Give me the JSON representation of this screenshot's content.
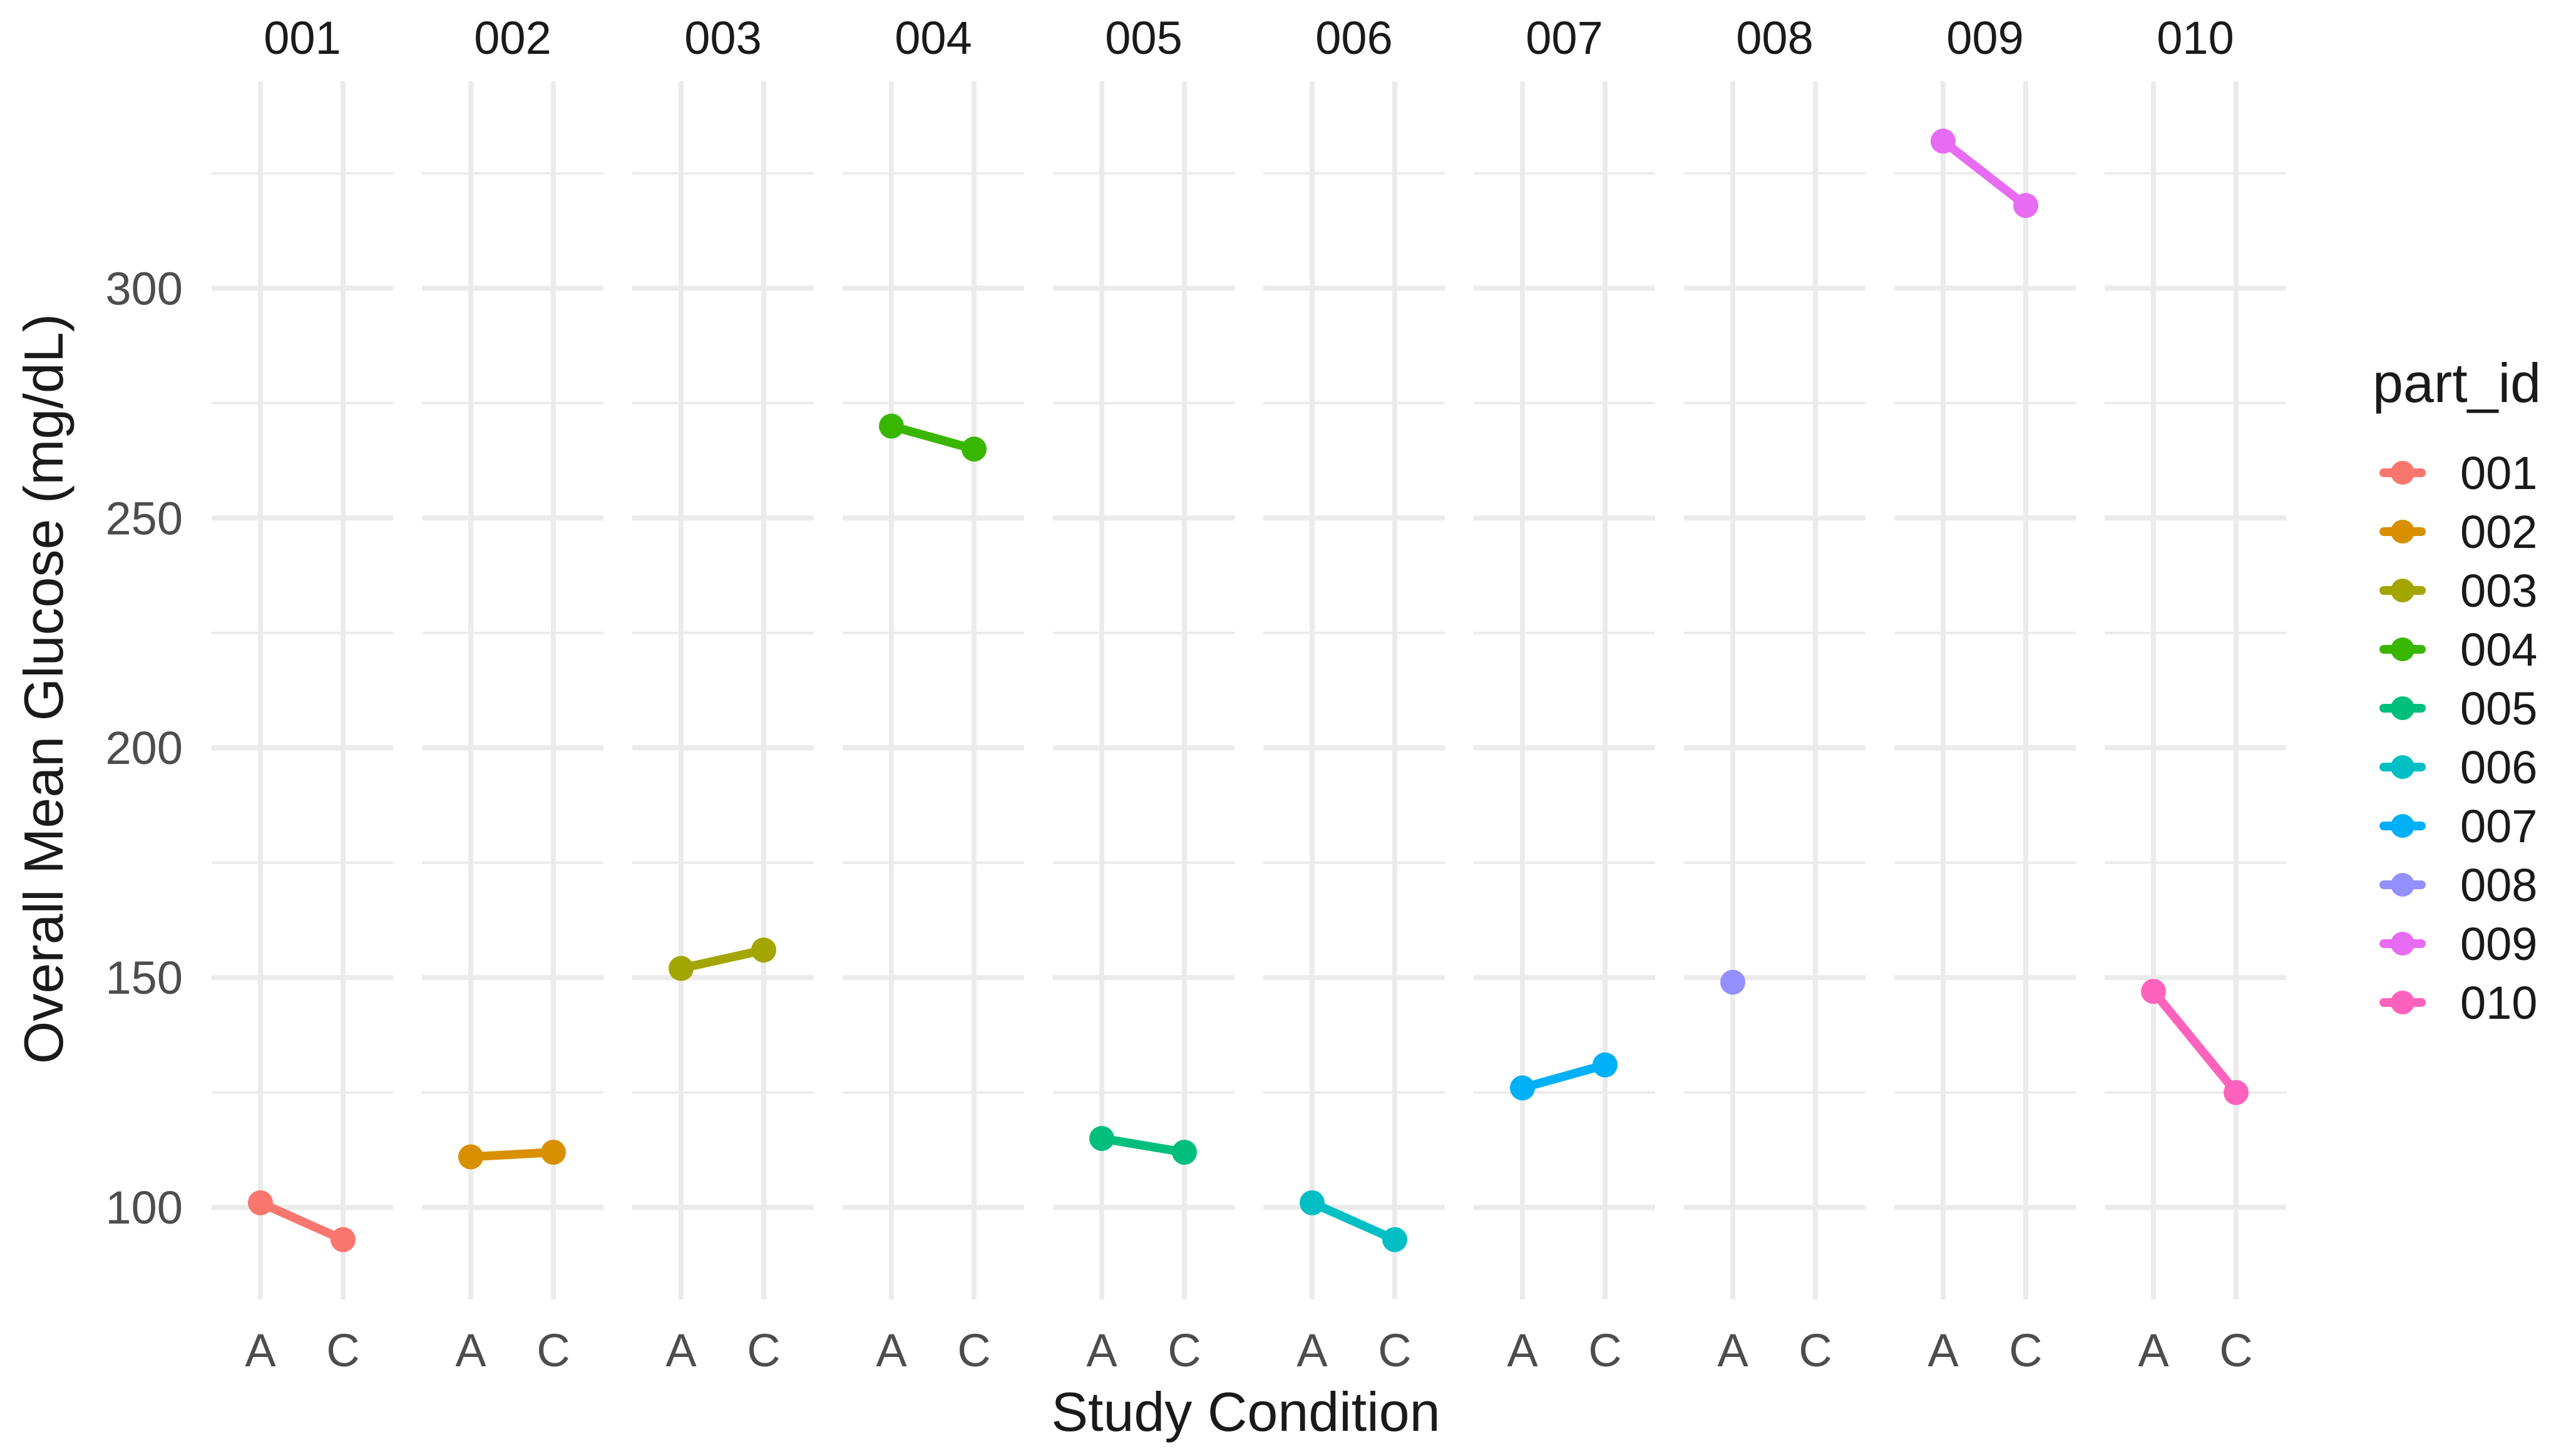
{
  "chart_data": {
    "type": "line",
    "title": "",
    "xlabel": "Study Condition",
    "ylabel": "Overall Mean Glucose (mg/dL)",
    "ylim": [
      80,
      345
    ],
    "y_ticks": [
      100,
      150,
      200,
      250,
      300
    ],
    "grid": true,
    "x_categories": [
      "A",
      "C"
    ],
    "facets": [
      "001",
      "002",
      "003",
      "004",
      "005",
      "006",
      "007",
      "008",
      "009",
      "010"
    ],
    "legend": {
      "title": "part_id",
      "position": "right",
      "entries": [
        "001",
        "002",
        "003",
        "004",
        "005",
        "006",
        "007",
        "008",
        "009",
        "010"
      ]
    },
    "series": [
      {
        "name": "001",
        "color": "#F8766D",
        "values": [
          101,
          93
        ]
      },
      {
        "name": "002",
        "color": "#D89000",
        "values": [
          111,
          112
        ]
      },
      {
        "name": "003",
        "color": "#A3A500",
        "values": [
          152,
          156
        ]
      },
      {
        "name": "004",
        "color": "#39B600",
        "values": [
          270,
          265
        ]
      },
      {
        "name": "005",
        "color": "#00BF7D",
        "values": [
          115,
          112
        ]
      },
      {
        "name": "006",
        "color": "#00BFC4",
        "values": [
          101,
          93
        ]
      },
      {
        "name": "007",
        "color": "#00B0F6",
        "values": [
          126,
          131
        ]
      },
      {
        "name": "008",
        "color": "#9590FF",
        "values": [
          149,
          null
        ]
      },
      {
        "name": "009",
        "color": "#E76BF3",
        "values": [
          332,
          318
        ]
      },
      {
        "name": "010",
        "color": "#FF62BC",
        "values": [
          147,
          125
        ]
      }
    ]
  }
}
